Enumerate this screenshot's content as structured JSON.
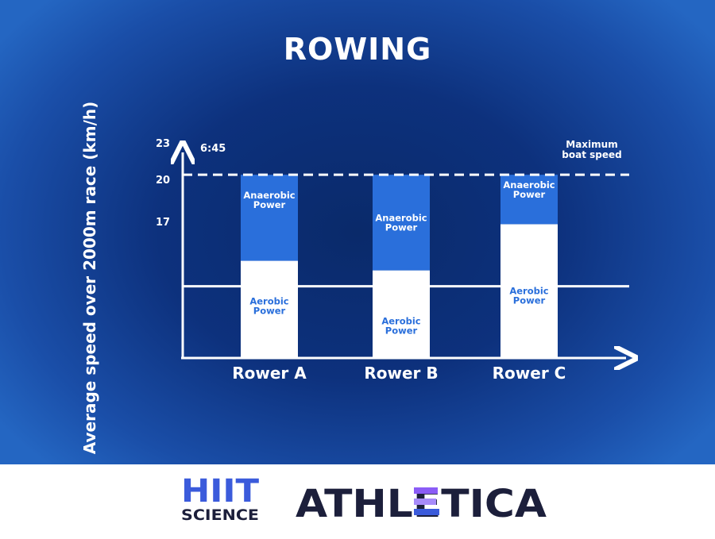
{
  "chart_data": {
    "type": "bar",
    "title": "ROWING",
    "ylabel": "Average speed over 2000m race (km/h)",
    "xlabel": "",
    "yticks": [
      "17",
      "20",
      "23"
    ],
    "max_line_label": [
      "Maximum",
      "boat speed"
    ],
    "max_line_value_label": "6:45",
    "categories": [
      "Rower A",
      "Rower B",
      "Rower C"
    ],
    "series": [
      {
        "name": "Aerobic Power",
        "label_lines": [
          "Aerobic",
          "Power"
        ],
        "values": [
          15.6,
          15.0,
          17.9
        ]
      },
      {
        "name": "Anaerobic Power",
        "label_lines": [
          "Anaerobic",
          "Power"
        ],
        "values": [
          5.4,
          6.0,
          3.1
        ]
      }
    ],
    "reference_line_lower": 14.0,
    "reference_line_upper": 21.0,
    "ylim": [
      9.5,
      23
    ],
    "colors": {
      "aerobic": "#ffffff",
      "anaerobic": "#2a6fdb",
      "label": "#2a6fdb",
      "axis": "#ffffff"
    }
  },
  "footer": {
    "logo_hiit_top": "HIIT",
    "logo_hiit_bottom": "SCIENCE",
    "logo_athletica": "ATHLETICA",
    "colors": {
      "hiit": "#3b5bdb",
      "dark": "#1c1f3b",
      "accent": "#8b5cf6"
    }
  }
}
